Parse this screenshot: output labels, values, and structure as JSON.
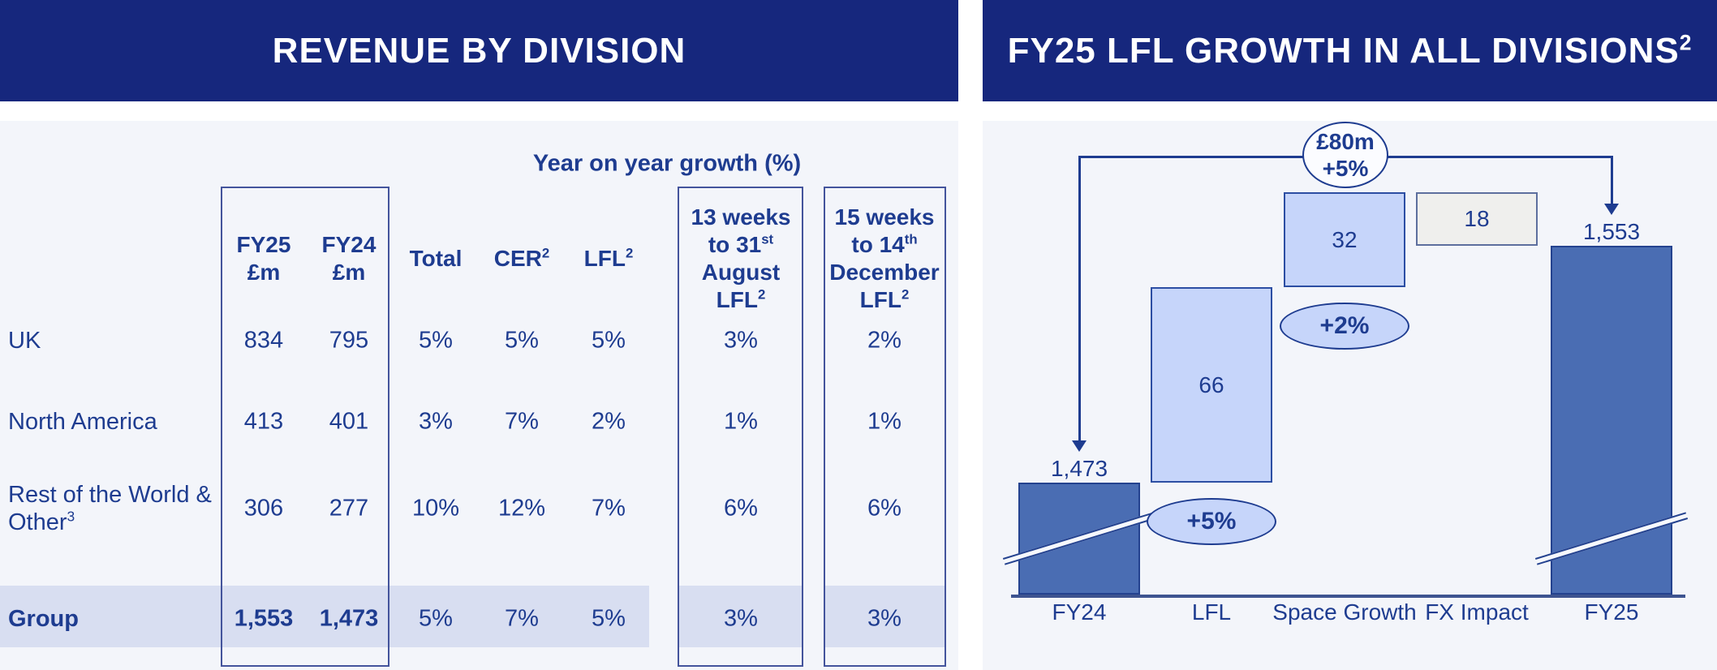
{
  "colors": {
    "header_navy": "#16277d",
    "ink_navy": "#1e3c90",
    "panel_bg": "#f3f5fa",
    "table_border_blue": "#44549c",
    "group_row_highlight": "#d8def1",
    "dark_bar_blue": "#4a6db3",
    "light_bar_blue": "#c6d5fa",
    "fx_bar_gray": "#efefed"
  },
  "left_panel": {
    "title": "REVENUE BY DIVISION"
  },
  "right_panel": {
    "title": "FY25 LFL GROWTH IN ALL DIVISIONS^{2}"
  },
  "chart_data": [
    {
      "type": "table",
      "title": "REVENUE BY DIVISION",
      "group_header": "Year on year growth (%)",
      "columns": [
        "FY25\n£m",
        "FY24\n£m",
        "Total",
        "CER^{2}",
        "LFL^{2}",
        "13 weeks\nto 31^{st}\nAugust\nLFL^{2}",
        "15 weeks\nto 14^{th}\nDecember\nLFL^{2}"
      ],
      "rows": [
        {
          "label": "UK",
          "values": [
            "834",
            "795",
            "5%",
            "5%",
            "5%",
            "3%",
            "2%"
          ],
          "emphasis": false
        },
        {
          "label": "North America",
          "values": [
            "413",
            "401",
            "3%",
            "7%",
            "2%",
            "1%",
            "1%"
          ],
          "emphasis": false
        },
        {
          "label": "Rest of the World &\nOther^{3}",
          "values": [
            "306",
            "277",
            "10%",
            "12%",
            "7%",
            "6%",
            "6%"
          ],
          "emphasis": false
        },
        {
          "label": "Group",
          "values": [
            "1,553",
            "1,473",
            "5%",
            "7%",
            "5%",
            "3%",
            "3%"
          ],
          "emphasis": true
        }
      ]
    },
    {
      "type": "bar",
      "variant": "waterfall",
      "title": "FY25 LFL GROWTH IN ALL DIVISIONS²",
      "categories": [
        "FY24",
        "LFL",
        "Space Growth",
        "FX Impact",
        "FY25"
      ],
      "values": [
        1473,
        66,
        32,
        -18,
        1553
      ],
      "bar_roles": [
        "total",
        "delta",
        "delta",
        "delta",
        "total"
      ],
      "bar_labels": [
        "1,473",
        "66",
        "32",
        "18",
        "1,553"
      ],
      "axis_break_on": [
        "FY24",
        "FY25"
      ],
      "legend": "none",
      "annotations": [
        {
          "label": "£80m\n+5%",
          "shape": "circle-callout",
          "span": [
            "FY24",
            "FY25"
          ]
        },
        {
          "label": "+5%",
          "shape": "ellipse",
          "below": "LFL"
        },
        {
          "label": "+2%",
          "shape": "ellipse",
          "below": "Space Growth"
        }
      ]
    }
  ]
}
